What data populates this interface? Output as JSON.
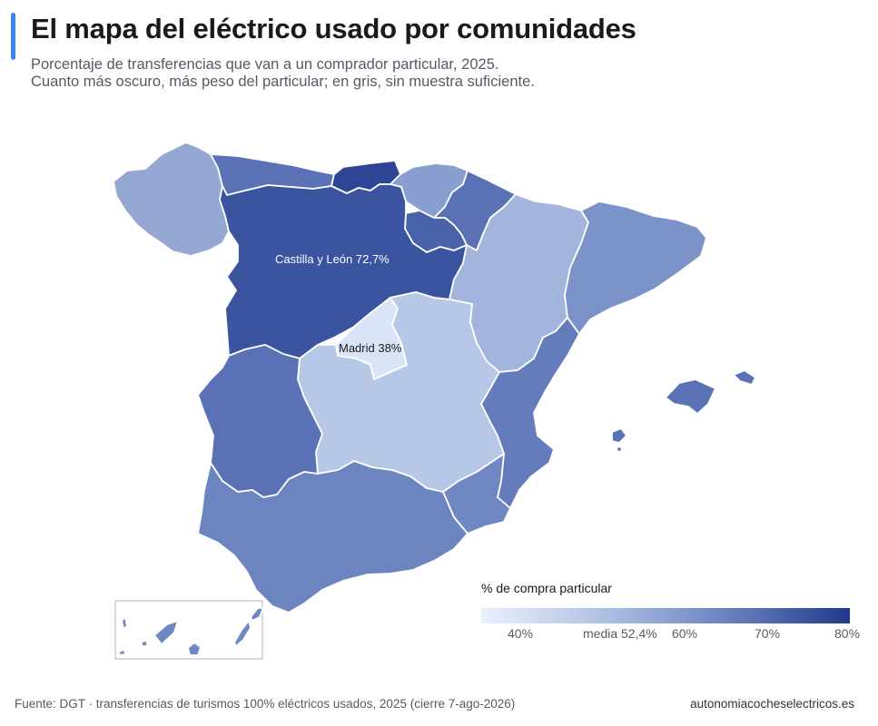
{
  "header": {
    "title": "El mapa del eléctrico usado por comunidades",
    "subtitle_line1": "Porcentaje de transferencias que van a un comprador particular, 2025.",
    "subtitle_line2": "Cuanto más oscuro, más peso del particular; en gris, sin muestra suficiente."
  },
  "map": {
    "annotations": {
      "castilla_leon": "Castilla y León 72,7%",
      "madrid": "Madrid 38%"
    },
    "colors": {
      "galicia": "#94a8d3",
      "asturias": "#5a72b5",
      "cantabria": "#2d4594",
      "pais_vasco": "#889fcf",
      "navarra": "#5a72b5",
      "la_rioja": "#4a62aa",
      "castilla_leon": "#3b549f",
      "aragon": "#a3b5dc",
      "cataluna": "#7b93c8",
      "madrid": "#d9e4f6",
      "castilla_la_mancha": "#b7c8e7",
      "extremadura": "#5a72b5",
      "valencia": "#647cbc",
      "murcia": "#6f88c3",
      "andalucia": "#6c84bf",
      "baleares": "#5a72b5",
      "canarias": "#6f88c3"
    }
  },
  "legend": {
    "title": "% de compra particular",
    "ticks": [
      "40%",
      "media 52,4%",
      "60%",
      "70%",
      "80%"
    ],
    "gradient": [
      "#e8f0fc",
      "#1f3a8c"
    ]
  },
  "footer": {
    "source": "Fuente: DGT · transferencias de turismos 100% eléctricos usados, 2025 (cierre 7-ago-2026)",
    "site": "autonomiacocheselectricos.es"
  }
}
